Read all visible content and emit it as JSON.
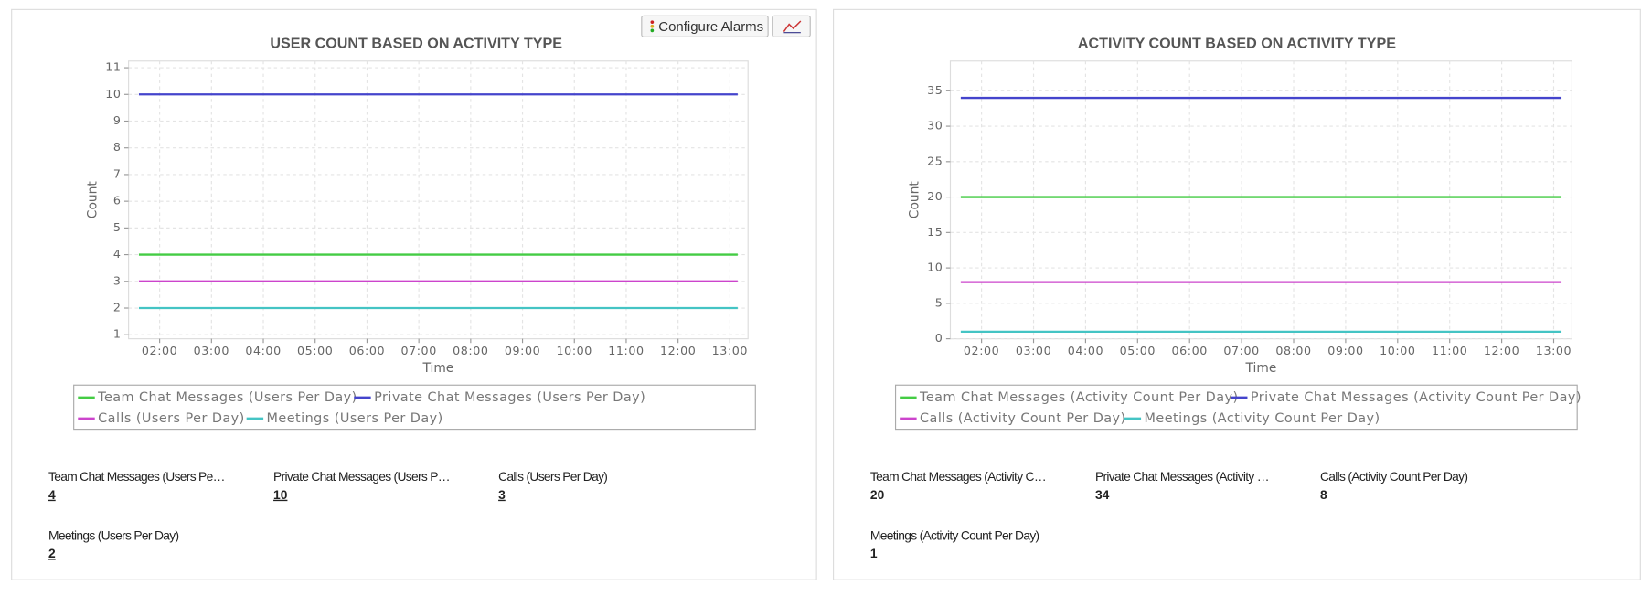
{
  "buttons": {
    "configure_alarms": "Configure Alarms"
  },
  "chart_data": [
    {
      "type": "line",
      "title": "USER COUNT BASED ON ACTIVITY TYPE",
      "x_label": "Time",
      "y_label": "Count",
      "x": [
        1.6,
        13.15
      ],
      "xlim": [
        1.4,
        13.35
      ],
      "xticks": [
        {
          "value": 2,
          "label": "02:00"
        },
        {
          "value": 3,
          "label": "03:00"
        },
        {
          "value": 4,
          "label": "04:00"
        },
        {
          "value": 5,
          "label": "05:00"
        },
        {
          "value": 6,
          "label": "06:00"
        },
        {
          "value": 7,
          "label": "07:00"
        },
        {
          "value": 8,
          "label": "08:00"
        },
        {
          "value": 9,
          "label": "09:00"
        },
        {
          "value": 10,
          "label": "10:00"
        },
        {
          "value": 11,
          "label": "11:00"
        },
        {
          "value": 12,
          "label": "12:00"
        },
        {
          "value": 13,
          "label": "13:00"
        }
      ],
      "ylim": [
        0.85,
        11.25
      ],
      "yticks": [
        1,
        2,
        3,
        4,
        5,
        6,
        7,
        8,
        9,
        10,
        11
      ],
      "grid": true,
      "series": [
        {
          "name": "Team Chat Messages (Users Per Day)",
          "color": "#44cc44",
          "values": [
            4,
            4
          ]
        },
        {
          "name": "Private Chat Messages (Users Per Day)",
          "color": "#4444cc",
          "values": [
            10,
            10
          ]
        },
        {
          "name": "Calls (Users Per Day)",
          "color": "#cc44cc",
          "values": [
            3,
            3
          ]
        },
        {
          "name": "Meetings (Users Per Day)",
          "color": "#44c4c4",
          "values": [
            2,
            2
          ]
        }
      ],
      "summary": [
        {
          "label": "Team Chat Messages (Users Pe…",
          "value": 4
        },
        {
          "label": "Private Chat Messages (Users P…",
          "value": 10
        },
        {
          "label": "Calls (Users Per Day)",
          "value": 3
        },
        {
          "label": "Meetings (Users Per Day)",
          "value": 2
        }
      ]
    },
    {
      "type": "line",
      "title": "ACTIVITY COUNT BASED ON ACTIVITY TYPE",
      "x_label": "Time",
      "y_label": "Count",
      "x": [
        1.6,
        13.15
      ],
      "xlim": [
        1.4,
        13.35
      ],
      "xticks": [
        {
          "value": 2,
          "label": "02:00"
        },
        {
          "value": 3,
          "label": "03:00"
        },
        {
          "value": 4,
          "label": "04:00"
        },
        {
          "value": 5,
          "label": "05:00"
        },
        {
          "value": 6,
          "label": "06:00"
        },
        {
          "value": 7,
          "label": "07:00"
        },
        {
          "value": 8,
          "label": "08:00"
        },
        {
          "value": 9,
          "label": "09:00"
        },
        {
          "value": 10,
          "label": "10:00"
        },
        {
          "value": 11,
          "label": "11:00"
        },
        {
          "value": 12,
          "label": "12:00"
        },
        {
          "value": 13,
          "label": "13:00"
        }
      ],
      "ylim": [
        0,
        39.2
      ],
      "yticks": [
        0,
        5,
        10,
        15,
        20,
        25,
        30,
        35
      ],
      "grid": true,
      "series": [
        {
          "name": "Team Chat Messages (Activity Count Per Day)",
          "color": "#44cc44",
          "values": [
            20,
            20
          ]
        },
        {
          "name": "Private Chat Messages (Activity Count Per Day)",
          "color": "#4444cc",
          "values": [
            34,
            34
          ]
        },
        {
          "name": "Calls (Activity Count Per Day)",
          "color": "#cc44cc",
          "values": [
            8,
            8
          ]
        },
        {
          "name": "Meetings (Activity Count Per Day)",
          "color": "#44c4c4",
          "values": [
            1,
            1
          ]
        }
      ],
      "summary": [
        {
          "label": "Team Chat Messages (Activity C…",
          "value": 20
        },
        {
          "label": "Private Chat Messages (Activity …",
          "value": 34
        },
        {
          "label": "Calls (Activity Count Per Day)",
          "value": 8
        },
        {
          "label": "Meetings (Activity Count Per Day)",
          "value": 1
        }
      ]
    }
  ]
}
